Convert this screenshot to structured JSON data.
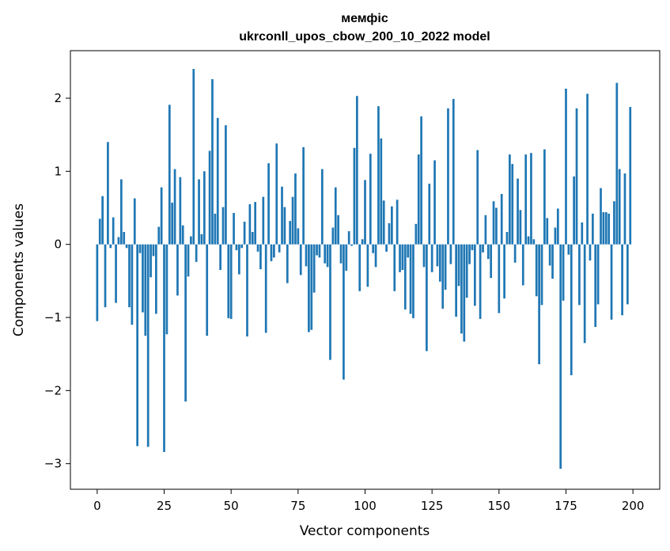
{
  "chart_data": {
    "type": "bar",
    "title_line1": "мемфіс",
    "title_line2": "ukrconll_upos_cbow_200_10_2022 model",
    "xlabel": "Vector components",
    "ylabel": "Components values",
    "xlim": [
      -10,
      210
    ],
    "ylim": [
      -3.35,
      2.65
    ],
    "xticks": [
      0,
      25,
      50,
      75,
      100,
      125,
      150,
      175,
      200
    ],
    "yticks": [
      -3,
      -2,
      -1,
      0,
      1,
      2
    ],
    "ytick_labels": [
      "−3",
      "−2",
      "−1",
      "0",
      "1",
      "2"
    ],
    "grid": false,
    "color": "#1f77b4",
    "x": [
      0,
      1,
      2,
      3,
      4,
      5,
      6,
      7,
      8,
      9,
      10,
      11,
      12,
      13,
      14,
      15,
      16,
      17,
      18,
      19,
      20,
      21,
      22,
      23,
      24,
      25,
      26,
      27,
      28,
      29,
      30,
      31,
      32,
      33,
      34,
      35,
      36,
      37,
      38,
      39,
      40,
      41,
      42,
      43,
      44,
      45,
      46,
      47,
      48,
      49,
      50,
      51,
      52,
      53,
      54,
      55,
      56,
      57,
      58,
      59,
      60,
      61,
      62,
      63,
      64,
      65,
      66,
      67,
      68,
      69,
      70,
      71,
      72,
      73,
      74,
      75,
      76,
      77,
      78,
      79,
      80,
      81,
      82,
      83,
      84,
      85,
      86,
      87,
      88,
      89,
      90,
      91,
      92,
      93,
      94,
      95,
      96,
      97,
      98,
      99,
      100,
      101,
      102,
      103,
      104,
      105,
      106,
      107,
      108,
      109,
      110,
      111,
      112,
      113,
      114,
      115,
      116,
      117,
      118,
      119,
      120,
      121,
      122,
      123,
      124,
      125,
      126,
      127,
      128,
      129,
      130,
      131,
      132,
      133,
      134,
      135,
      136,
      137,
      138,
      139,
      140,
      141,
      142,
      143,
      144,
      145,
      146,
      147,
      148,
      149,
      150,
      151,
      152,
      153,
      154,
      155,
      156,
      157,
      158,
      159,
      160,
      161,
      162,
      163,
      164,
      165,
      166,
      167,
      168,
      169,
      170,
      171,
      172,
      173,
      174,
      175,
      176,
      177,
      178,
      179,
      180,
      181,
      182,
      183,
      184,
      185,
      186,
      187,
      188,
      189,
      190,
      191,
      192,
      193,
      194,
      195,
      196,
      197,
      198,
      199
    ],
    "values": [
      -1.05,
      0.35,
      0.66,
      -0.86,
      1.4,
      -0.05,
      0.37,
      -0.8,
      0.1,
      0.89,
      0.17,
      -0.05,
      -0.86,
      -1.1,
      0.63,
      -2.76,
      -0.12,
      -0.93,
      -1.25,
      -2.77,
      -0.45,
      -0.16,
      -0.95,
      0.24,
      0.78,
      -2.84,
      -1.23,
      1.91,
      0.57,
      1.03,
      -0.7,
      0.92,
      0.26,
      -2.15,
      -0.44,
      0.11,
      2.4,
      -0.24,
      0.89,
      0.14,
      1.0,
      -1.25,
      1.28,
      2.26,
      0.42,
      1.73,
      -0.35,
      0.51,
      1.63,
      -1.01,
      -1.02,
      0.43,
      -0.08,
      -0.41,
      -0.05,
      0.31,
      -1.26,
      0.55,
      0.17,
      0.58,
      -0.1,
      -0.34,
      0.65,
      -1.21,
      1.11,
      -0.23,
      -0.18,
      1.38,
      -0.11,
      0.79,
      0.51,
      -0.53,
      0.32,
      0.65,
      0.97,
      0.22,
      -0.42,
      1.33,
      -0.3,
      -1.2,
      -1.17,
      -0.66,
      -0.15,
      -0.18,
      1.03,
      -0.26,
      -0.31,
      -1.58,
      0.23,
      0.78,
      0.4,
      -0.26,
      -1.85,
      -0.36,
      0.18,
      -0.02,
      1.32,
      2.03,
      -0.64,
      0.07,
      0.88,
      -0.58,
      1.24,
      -0.12,
      -0.31,
      1.89,
      1.45,
      0.6,
      -0.1,
      0.29,
      0.52,
      -0.64,
      0.61,
      -0.38,
      -0.35,
      -0.89,
      -0.18,
      -0.95,
      -1.01,
      0.28,
      1.23,
      1.75,
      -0.31,
      -1.46,
      0.83,
      -0.38,
      1.15,
      -0.3,
      -0.51,
      -0.88,
      -0.62,
      1.86,
      -0.27,
      1.99,
      -0.99,
      -0.57,
      -1.22,
      -1.33,
      -0.73,
      -0.27,
      -0.08,
      -0.84,
      1.29,
      -1.02,
      -0.11,
      0.4,
      -0.2,
      -0.46,
      0.59,
      0.5,
      -0.94,
      0.69,
      -0.74,
      0.17,
      1.23,
      1.1,
      -0.25,
      0.9,
      0.47,
      -0.56,
      1.23,
      0.11,
      1.25,
      0.07,
      -0.71,
      -1.64,
      -0.83,
      1.3,
      0.36,
      -0.29,
      -0.47,
      0.23,
      0.49,
      -3.07,
      -0.77,
      2.13,
      -0.14,
      -1.79,
      0.93,
      1.86,
      -0.83,
      0.3,
      -1.35,
      2.06,
      -0.22,
      0.42,
      -1.13,
      -0.82,
      0.77,
      0.44,
      0.44,
      0.42,
      -1.03,
      0.59,
      2.21,
      1.03,
      -0.97,
      0.97,
      -0.82,
      1.88
    ]
  }
}
